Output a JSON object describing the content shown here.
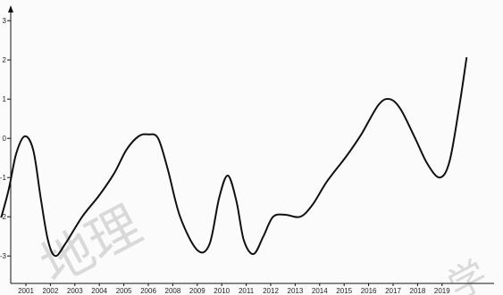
{
  "chart_data": {
    "type": "line",
    "title": "",
    "xlabel": "",
    "ylabel": "",
    "categories": [
      "2001",
      "2002",
      "2003",
      "2004",
      "2005",
      "2006",
      "2008",
      "2009",
      "2010",
      "2011",
      "2012",
      "2013",
      "2014",
      "2015",
      "2016",
      "2017",
      "2018",
      "2019"
    ],
    "y_ticks": [
      "-3",
      "-2",
      "-1",
      "0",
      "1",
      "2",
      "3"
    ],
    "ylim": [
      -3.7,
      3.3
    ],
    "grid": false,
    "legend": "none",
    "series": [
      {
        "points": [
          {
            "x": 2000.0,
            "y": -2.0
          },
          {
            "x": 2000.3,
            "y": -1.3
          },
          {
            "x": 2000.6,
            "y": -0.4
          },
          {
            "x": 2000.95,
            "y": 0.05
          },
          {
            "x": 2001.3,
            "y": -0.3
          },
          {
            "x": 2001.6,
            "y": -1.5
          },
          {
            "x": 2001.9,
            "y": -2.6
          },
          {
            "x": 2002.2,
            "y": -3.0
          },
          {
            "x": 2002.6,
            "y": -2.7
          },
          {
            "x": 2003.3,
            "y": -2.0
          },
          {
            "x": 2004.0,
            "y": -1.45
          },
          {
            "x": 2004.6,
            "y": -0.9
          },
          {
            "x": 2005.1,
            "y": -0.3
          },
          {
            "x": 2005.6,
            "y": 0.05
          },
          {
            "x": 2006.0,
            "y": 0.1
          },
          {
            "x": 2006.4,
            "y": 0.0
          },
          {
            "x": 2006.8,
            "y": -0.8
          },
          {
            "x": 2007.3,
            "y": -2.0
          },
          {
            "x": 2008.0,
            "y": -2.85
          },
          {
            "x": 2008.5,
            "y": -2.7
          },
          {
            "x": 2008.9,
            "y": -1.5
          },
          {
            "x": 2009.25,
            "y": -0.95
          },
          {
            "x": 2009.6,
            "y": -1.6
          },
          {
            "x": 2009.9,
            "y": -2.6
          },
          {
            "x": 2010.3,
            "y": -2.95
          },
          {
            "x": 2010.7,
            "y": -2.5
          },
          {
            "x": 2011.1,
            "y": -2.0
          },
          {
            "x": 2011.6,
            "y": -1.95
          },
          {
            "x": 2012.2,
            "y": -2.0
          },
          {
            "x": 2012.7,
            "y": -1.7
          },
          {
            "x": 2013.3,
            "y": -1.1
          },
          {
            "x": 2014.1,
            "y": -0.45
          },
          {
            "x": 2014.7,
            "y": 0.1
          },
          {
            "x": 2015.4,
            "y": 0.85
          },
          {
            "x": 2015.85,
            "y": 1.0
          },
          {
            "x": 2016.3,
            "y": 0.75
          },
          {
            "x": 2016.9,
            "y": 0.0
          },
          {
            "x": 2017.4,
            "y": -0.65
          },
          {
            "x": 2017.9,
            "y": -1.0
          },
          {
            "x": 2018.3,
            "y": -0.6
          },
          {
            "x": 2018.7,
            "y": 0.8
          },
          {
            "x": 2019.0,
            "y": 2.05
          }
        ]
      }
    ]
  },
  "watermark": {
    "lettering": [
      "地理",
      "学"
    ],
    "color": "#d9d9d9"
  }
}
